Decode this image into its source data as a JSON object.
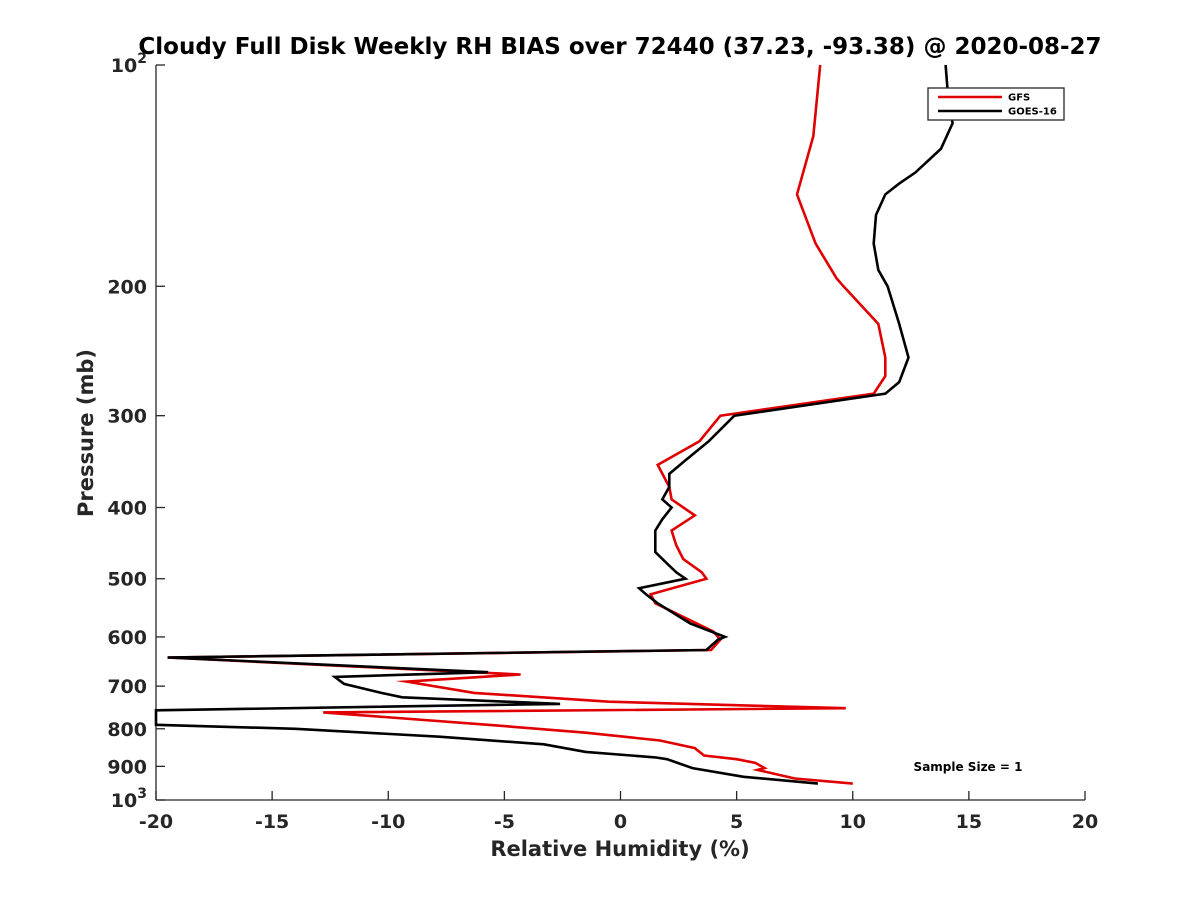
{
  "chart_data": {
    "type": "line",
    "title": "Cloudy Full Disk Weekly RH BIAS over 72440 (37.23, -93.38) @ 2020-08-27",
    "xlabel": "Relative Humidity (%)",
    "ylabel": "Pressure (mb)",
    "xlim": [
      -20,
      20
    ],
    "ylim": [
      100,
      1000
    ],
    "y_scale": "log",
    "y_reversed": true,
    "grid": false,
    "legend_position": "top-right",
    "x_ticks": [
      -20,
      -15,
      -10,
      -5,
      0,
      5,
      10,
      15,
      20
    ],
    "x_tick_labels": [
      "-20",
      "-15",
      "-10",
      "-5",
      "0",
      "5",
      "10",
      "15",
      "20"
    ],
    "y_ticks": [
      100,
      200,
      300,
      400,
      500,
      600,
      700,
      800,
      900,
      1000
    ],
    "y_tick_labels": [
      {
        "base": "10",
        "exp": "2"
      },
      {
        "base": "200",
        "exp": ""
      },
      {
        "base": "300",
        "exp": ""
      },
      {
        "base": "400",
        "exp": ""
      },
      {
        "base": "500",
        "exp": ""
      },
      {
        "base": "600",
        "exp": ""
      },
      {
        "base": "700",
        "exp": ""
      },
      {
        "base": "800",
        "exp": ""
      },
      {
        "base": "900",
        "exp": ""
      },
      {
        "base": "10",
        "exp": "3"
      }
    ],
    "series": [
      {
        "name": "GFS",
        "color": "#e00000",
        "points": [
          [
            8.6,
            100
          ],
          [
            8.3,
            125
          ],
          [
            7.6,
            150
          ],
          [
            8.4,
            175
          ],
          [
            9.3,
            195
          ],
          [
            9.6,
            200
          ],
          [
            11.1,
            225
          ],
          [
            11.4,
            250
          ],
          [
            11.4,
            265
          ],
          [
            10.9,
            280
          ],
          [
            4.3,
            300
          ],
          [
            3.4,
            325
          ],
          [
            1.6,
            350
          ],
          [
            2.1,
            375
          ],
          [
            2.2,
            390
          ],
          [
            3.2,
            410
          ],
          [
            2.2,
            430
          ],
          [
            2.4,
            450
          ],
          [
            2.7,
            470
          ],
          [
            3.5,
            490
          ],
          [
            3.7,
            500
          ],
          [
            1.3,
            525
          ],
          [
            1.5,
            540
          ],
          [
            4.0,
            590
          ],
          [
            4.3,
            605
          ],
          [
            3.9,
            625
          ],
          [
            -19.5,
            640
          ],
          [
            -4.3,
            675
          ],
          [
            -9.2,
            690
          ],
          [
            -6.3,
            715
          ],
          [
            -0.5,
            735
          ],
          [
            9.7,
            750
          ],
          [
            -12.8,
            760
          ],
          [
            -5.7,
            790
          ],
          [
            -1.5,
            810
          ],
          [
            1.7,
            830
          ],
          [
            3.2,
            850
          ],
          [
            3.4,
            860
          ],
          [
            3.6,
            870
          ],
          [
            5.0,
            880
          ],
          [
            5.8,
            890
          ],
          [
            6.2,
            905
          ],
          [
            5.9,
            910
          ],
          [
            7.5,
            935
          ],
          [
            10.0,
            950
          ]
        ]
      },
      {
        "name": "GOES-16",
        "color": "#000000",
        "points": [
          [
            14.0,
            100
          ],
          [
            14.1,
            110
          ],
          [
            14.3,
            120
          ],
          [
            13.8,
            130
          ],
          [
            12.7,
            140
          ],
          [
            12.0,
            145
          ],
          [
            11.4,
            150
          ],
          [
            11.0,
            160
          ],
          [
            10.9,
            175
          ],
          [
            11.1,
            190
          ],
          [
            11.5,
            200
          ],
          [
            12.0,
            225
          ],
          [
            12.4,
            250
          ],
          [
            12.0,
            270
          ],
          [
            11.4,
            280
          ],
          [
            4.9,
            300
          ],
          [
            3.8,
            325
          ],
          [
            2.8,
            345
          ],
          [
            2.1,
            360
          ],
          [
            2.1,
            375
          ],
          [
            1.8,
            390
          ],
          [
            2.2,
            400
          ],
          [
            1.8,
            415
          ],
          [
            1.5,
            430
          ],
          [
            1.5,
            450
          ],
          [
            1.5,
            460
          ],
          [
            2.1,
            480
          ],
          [
            2.4,
            490
          ],
          [
            2.8,
            500
          ],
          [
            0.8,
            515
          ],
          [
            1.1,
            525
          ],
          [
            1.6,
            540
          ],
          [
            3.0,
            575
          ],
          [
            4.5,
            600
          ],
          [
            4.2,
            605
          ],
          [
            3.7,
            625
          ],
          [
            -19.5,
            640
          ],
          [
            -5.7,
            670
          ],
          [
            -12.3,
            680
          ],
          [
            -11.9,
            695
          ],
          [
            -10.3,
            715
          ],
          [
            -9.4,
            725
          ],
          [
            -2.6,
            740
          ],
          [
            -20.0,
            755
          ],
          [
            -20.0,
            790
          ],
          [
            -14.0,
            800
          ],
          [
            -7.8,
            820
          ],
          [
            -3.3,
            840
          ],
          [
            -1.5,
            860
          ],
          [
            1.5,
            875
          ],
          [
            2.0,
            880
          ],
          [
            3.1,
            905
          ],
          [
            5.3,
            930
          ],
          [
            8.5,
            950
          ]
        ]
      }
    ],
    "annotation": "Sample Size = 1"
  }
}
